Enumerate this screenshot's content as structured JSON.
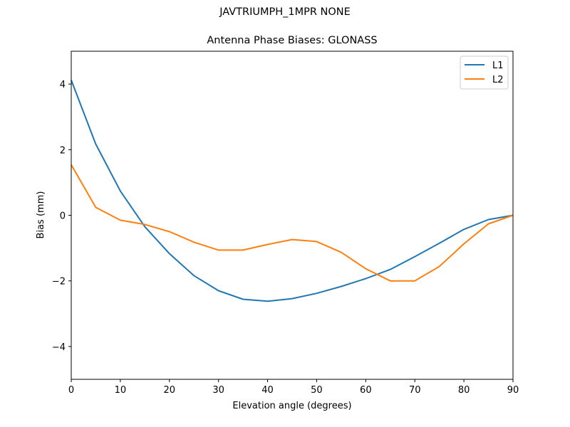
{
  "figure": {
    "suptitle": "JAVTRIUMPH_1MPR NONE",
    "title": "Antenna Phase Biases: GLONASS"
  },
  "chart_data": {
    "type": "line",
    "title": "Antenna Phase Biases: GLONASS",
    "suptitle": "JAVTRIUMPH_1MPR NONE",
    "xlabel": "Elevation angle (degrees)",
    "ylabel": "Bias (mm)",
    "xlim": [
      0,
      90
    ],
    "ylim": [
      -5,
      5
    ],
    "xticks": [
      0,
      10,
      20,
      30,
      40,
      50,
      60,
      70,
      80,
      90
    ],
    "yticks": [
      -4,
      -2,
      0,
      2,
      4
    ],
    "ytick_labels": [
      "−4",
      "−2",
      "0",
      "2",
      "4"
    ],
    "grid": false,
    "legend_position": "upper right",
    "x": [
      0,
      5,
      10,
      15,
      20,
      25,
      30,
      35,
      40,
      45,
      50,
      55,
      60,
      65,
      70,
      75,
      80,
      85,
      90
    ],
    "series": [
      {
        "name": "L1",
        "color": "#1f77b4",
        "values": [
          4.12,
          2.17,
          0.74,
          -0.35,
          -1.17,
          -1.84,
          -2.3,
          -2.56,
          -2.62,
          -2.54,
          -2.38,
          -2.17,
          -1.93,
          -1.65,
          -1.26,
          -0.85,
          -0.43,
          -0.13,
          0.0
        ]
      },
      {
        "name": "L2",
        "color": "#ff7f0e",
        "values": [
          1.54,
          0.24,
          -0.15,
          -0.28,
          -0.5,
          -0.82,
          -1.06,
          -1.06,
          -0.89,
          -0.74,
          -0.8,
          -1.13,
          -1.63,
          -2.0,
          -2.0,
          -1.56,
          -0.87,
          -0.26,
          0.0
        ]
      }
    ]
  }
}
